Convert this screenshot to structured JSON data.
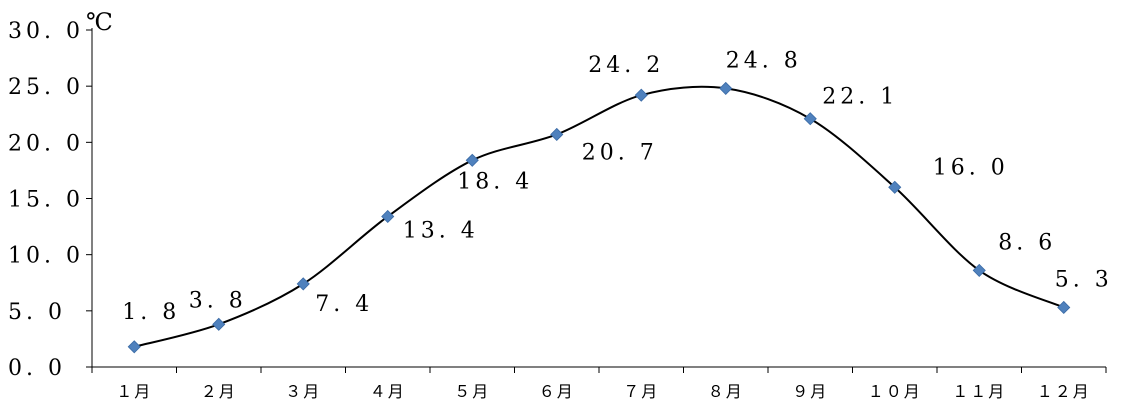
{
  "chart_data": {
    "type": "line",
    "unit": "℃",
    "categories": [
      "1月",
      "2月",
      "3月",
      "4月",
      "5月",
      "6月",
      "7月",
      "8月",
      "9月",
      "10月",
      "11月",
      "12月"
    ],
    "category_labels": [
      "１月",
      "２月",
      "３月",
      "４月",
      "５月",
      "６月",
      "７月",
      "８月",
      "９月",
      "１０月",
      "１１月",
      "１２月"
    ],
    "series": [
      {
        "values": [
          1.8,
          3.8,
          7.4,
          13.4,
          18.4,
          20.7,
          24.2,
          24.8,
          22.1,
          16.0,
          8.6,
          5.3
        ],
        "value_labels": [
          "1. 8",
          "3. 8",
          "7. 4",
          "13. 4",
          "18. 4",
          "20. 7",
          "24. 2",
          "24. 8",
          "22. 1",
          "16. 0",
          "8. 6",
          "5. 3"
        ],
        "line_color": "#000000",
        "marker_color": "#4f81bd",
        "marker": "diamond"
      }
    ],
    "y_ticks": [
      0,
      5,
      10,
      15,
      20,
      25,
      30
    ],
    "y_tick_labels": [
      "0. 0",
      "5. 0",
      "10. 0",
      "15. 0",
      "20. 0",
      "25. 0",
      "30. 0"
    ],
    "ylim": [
      0,
      30
    ],
    "grid": false,
    "smooth": true,
    "legend": "none"
  }
}
